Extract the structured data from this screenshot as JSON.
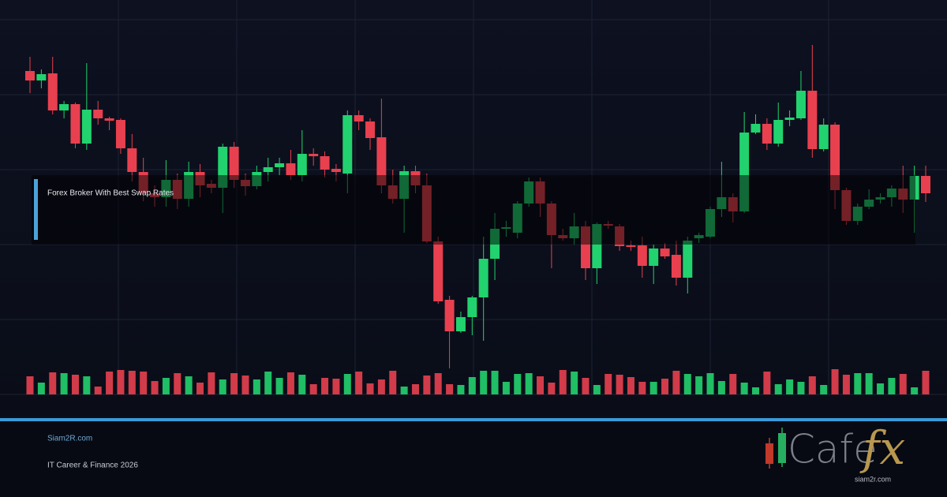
{
  "chart_data": {
    "type": "candlestick",
    "open": [
      410,
      398,
      407,
      360,
      368,
      318,
      361,
      350,
      348,
      312,
      282,
      255,
      250,
      272,
      248,
      282,
      267,
      262,
      314,
      272,
      264,
      282,
      288,
      293,
      278,
      305,
      302,
      286,
      280,
      354,
      346,
      326,
      265,
      248,
      283,
      265,
      194,
      120,
      80,
      98,
      123,
      172,
      210,
      205,
      242,
      270,
      242,
      202,
      198,
      213,
      160,
      216,
      213,
      189,
      189,
      163,
      185,
      177,
      148,
      198,
      200,
      235,
      250,
      232,
      332,
      343,
      318,
      348,
      350,
      385,
      311,
      342,
      259,
      220,
      238,
      247,
      250,
      261,
      247,
      277
    ],
    "high": [
      428,
      412,
      428,
      372,
      370,
      420,
      372,
      352,
      350,
      330,
      300,
      265,
      297,
      280,
      295,
      292,
      272,
      318,
      320,
      280,
      290,
      300,
      300,
      310,
      335,
      312,
      308,
      292,
      360,
      360,
      350,
      375,
      285,
      290,
      290,
      280,
      200,
      125,
      105,
      125,
      200,
      230,
      220,
      245,
      275,
      275,
      245,
      210,
      230,
      220,
      218,
      220,
      216,
      195,
      200,
      190,
      192,
      195,
      200,
      205,
      238,
      295,
      255,
      358,
      355,
      350,
      370,
      360,
      410,
      443,
      350,
      345,
      262,
      242,
      260,
      255,
      265,
      290,
      290,
      290
    ],
    "low": [
      382,
      388,
      355,
      350,
      312,
      310,
      342,
      335,
      305,
      270,
      245,
      238,
      238,
      235,
      238,
      250,
      255,
      230,
      262,
      252,
      260,
      270,
      278,
      272,
      270,
      290,
      275,
      270,
      255,
      335,
      310,
      255,
      242,
      205,
      255,
      192,
      115,
      33,
      78,
      75,
      68,
      145,
      200,
      198,
      238,
      225,
      160,
      195,
      190,
      145,
      140,
      210,
      182,
      182,
      148,
      140,
      172,
      138,
      128,
      192,
      198,
      225,
      218,
      230,
      330,
      310,
      314,
      340,
      348,
      300,
      308,
      235,
      215,
      215,
      235,
      242,
      238,
      230,
      205,
      244
    ],
    "close": [
      398,
      406,
      360,
      368,
      318,
      361,
      350,
      347,
      312,
      282,
      255,
      250,
      272,
      248,
      282,
      265,
      262,
      314,
      272,
      264,
      282,
      288,
      293,
      278,
      305,
      302,
      285,
      282,
      354,
      346,
      325,
      265,
      248,
      283,
      265,
      194,
      118,
      80,
      98,
      123,
      172,
      210,
      212,
      242,
      270,
      242,
      202,
      198,
      213,
      160,
      216,
      214,
      188,
      187,
      163,
      185,
      175,
      148,
      195,
      202,
      235,
      250,
      232,
      332,
      343,
      318,
      348,
      351,
      385,
      311,
      342,
      259,
      220,
      238,
      247,
      250,
      261,
      247,
      277,
      255
    ],
    "volume": [
      23,
      15,
      28,
      27,
      25,
      23,
      10,
      29,
      31,
      30,
      29,
      17,
      21,
      27,
      23,
      15,
      28,
      19,
      27,
      24,
      19,
      29,
      21,
      28,
      25,
      13,
      21,
      20,
      26,
      29,
      14,
      19,
      30,
      10,
      13,
      24,
      27,
      13,
      12,
      22,
      30,
      30,
      16,
      26,
      27,
      23,
      15,
      31,
      29,
      21,
      12,
      26,
      25,
      22,
      16,
      16,
      20,
      30,
      26,
      23,
      27,
      17,
      26,
      15,
      9,
      29,
      13,
      19,
      16,
      23,
      12,
      32,
      25,
      27,
      27,
      14,
      21,
      26,
      9,
      30
    ],
    "up_color": "#22d26e",
    "down_color": "#e8404f",
    "ylim": [
      0,
      500
    ],
    "grid": true
  },
  "banner": {
    "title": "Forex Broker With Best Swap Rates"
  },
  "footer": {
    "site": "Siam2R.com",
    "tagline": "IT Career & Finance 2026"
  },
  "logo": {
    "word": "Cafe",
    "accent": "fx",
    "site": "siam2r.com"
  }
}
